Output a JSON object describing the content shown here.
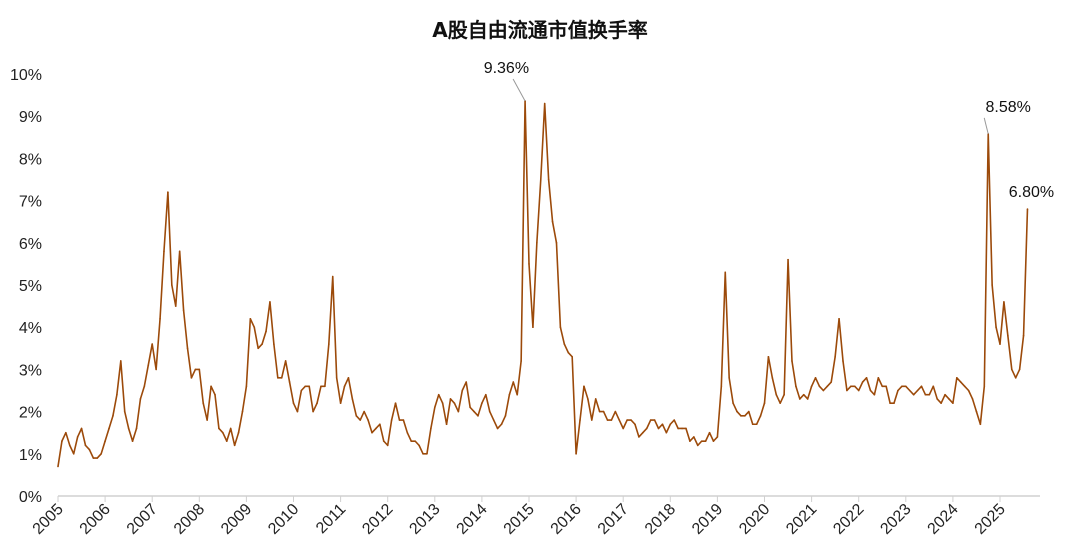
{
  "chart_data": {
    "type": "line",
    "title": "A股自由流通市值换手率",
    "xlabel": "",
    "ylabel": "",
    "xlim": [
      2005,
      2025.7
    ],
    "ylim": [
      0,
      10
    ],
    "y_ticks": [
      "0%",
      "1%",
      "2%",
      "3%",
      "4%",
      "5%",
      "6%",
      "7%",
      "8%",
      "9%",
      "10%"
    ],
    "x_ticks": [
      "2005",
      "2006",
      "2007",
      "2008",
      "2009",
      "2010",
      "2011",
      "2012",
      "2013",
      "2014",
      "2015",
      "2016",
      "2017",
      "2018",
      "2019",
      "2020",
      "2021",
      "2022",
      "2023",
      "2024",
      "2025"
    ],
    "grid": false,
    "legend": "none",
    "line_color": "#9c4a0a",
    "series": [
      {
        "values_by_year": [
          {
            "year": 2005,
            "monthly": [
              0.7,
              1.3,
              1.5,
              1.2,
              1.0,
              1.4,
              1.6,
              1.2,
              1.1,
              0.9,
              0.9,
              1.0
            ]
          },
          {
            "year": 2006,
            "monthly": [
              1.3,
              1.6,
              1.9,
              2.4,
              3.2,
              2.0,
              1.6,
              1.3,
              1.6,
              2.3,
              2.6,
              3.1
            ]
          },
          {
            "year": 2007,
            "monthly": [
              3.6,
              3.0,
              4.2,
              5.8,
              7.2,
              5.0,
              4.5,
              5.8,
              4.4,
              3.5,
              2.8,
              3.0
            ]
          },
          {
            "year": 2008,
            "monthly": [
              3.0,
              2.2,
              1.8,
              2.6,
              2.4,
              1.6,
              1.5,
              1.3,
              1.6,
              1.2,
              1.5,
              2.0
            ]
          },
          {
            "year": 2009,
            "monthly": [
              2.6,
              4.2,
              4.0,
              3.5,
              3.6,
              3.9,
              4.6,
              3.6,
              2.8,
              2.8,
              3.2,
              2.7
            ]
          },
          {
            "year": 2010,
            "monthly": [
              2.2,
              2.0,
              2.5,
              2.6,
              2.6,
              2.0,
              2.2,
              2.6,
              2.6,
              3.6,
              5.2,
              2.8
            ]
          },
          {
            "year": 2011,
            "monthly": [
              2.2,
              2.6,
              2.8,
              2.3,
              1.9,
              1.8,
              2.0,
              1.8,
              1.5,
              1.6,
              1.7,
              1.3
            ]
          },
          {
            "year": 2012,
            "monthly": [
              1.2,
              1.8,
              2.2,
              1.8,
              1.8,
              1.5,
              1.3,
              1.3,
              1.2,
              1.0,
              1.0,
              1.6
            ]
          },
          {
            "year": 2013,
            "monthly": [
              2.1,
              2.4,
              2.2,
              1.7,
              2.3,
              2.2,
              2.0,
              2.5,
              2.7,
              2.1,
              2.0,
              1.9
            ]
          },
          {
            "year": 2014,
            "monthly": [
              2.2,
              2.4,
              2.0,
              1.8,
              1.6,
              1.7,
              1.9,
              2.4,
              2.7,
              2.4,
              3.2,
              9.36
            ]
          },
          {
            "year": 2015,
            "monthly": [
              5.5,
              4.0,
              6.0,
              7.5,
              9.3,
              7.5,
              6.5,
              6.0,
              4.0,
              3.6,
              3.4,
              3.3
            ]
          },
          {
            "year": 2016,
            "monthly": [
              1.0,
              1.8,
              2.6,
              2.3,
              1.8,
              2.3,
              2.0,
              2.0,
              1.8,
              1.8,
              2.0,
              1.8
            ]
          },
          {
            "year": 2017,
            "monthly": [
              1.6,
              1.8,
              1.8,
              1.7,
              1.4,
              1.5,
              1.6,
              1.8,
              1.8,
              1.6,
              1.7,
              1.5
            ]
          },
          {
            "year": 2018,
            "monthly": [
              1.7,
              1.8,
              1.6,
              1.6,
              1.6,
              1.3,
              1.4,
              1.2,
              1.3,
              1.3,
              1.5,
              1.3
            ]
          },
          {
            "year": 2019,
            "monthly": [
              1.4,
              2.6,
              5.3,
              2.8,
              2.2,
              2.0,
              1.9,
              1.9,
              2.0,
              1.7,
              1.7,
              1.9
            ]
          },
          {
            "year": 2020,
            "monthly": [
              2.2,
              3.3,
              2.8,
              2.4,
              2.2,
              2.4,
              5.6,
              3.2,
              2.6,
              2.3,
              2.4,
              2.3
            ]
          },
          {
            "year": 2021,
            "monthly": [
              2.6,
              2.8,
              2.6,
              2.5,
              2.6,
              2.7,
              3.3,
              4.2,
              3.2,
              2.5,
              2.6,
              2.6
            ]
          },
          {
            "year": 2022,
            "monthly": [
              2.5,
              2.7,
              2.8,
              2.5,
              2.4,
              2.8,
              2.6,
              2.6,
              2.2,
              2.2,
              2.5,
              2.6
            ]
          },
          {
            "year": 2023,
            "monthly": [
              2.6,
              2.5,
              2.4,
              2.5,
              2.6,
              2.4,
              2.4,
              2.6,
              2.3,
              2.2,
              2.4,
              2.3
            ]
          },
          {
            "year": 2024,
            "monthly": [
              2.2,
              2.8,
              2.7,
              2.6,
              2.5,
              2.3,
              2.0,
              1.7,
              2.6,
              8.58,
              5.0,
              4.0
            ]
          },
          {
            "year": 2025,
            "monthly": [
              3.6,
              4.6,
              3.8,
              3.0,
              2.8,
              3.0,
              3.8,
              6.8
            ]
          }
        ]
      }
    ],
    "annotations": [
      {
        "text": "9.36%",
        "x": "2014-12",
        "y": 9.36
      },
      {
        "text": "8.58%",
        "x": "2024-10",
        "y": 8.58
      },
      {
        "text": "6.80%",
        "x": "2025-08",
        "y": 6.8
      }
    ]
  }
}
